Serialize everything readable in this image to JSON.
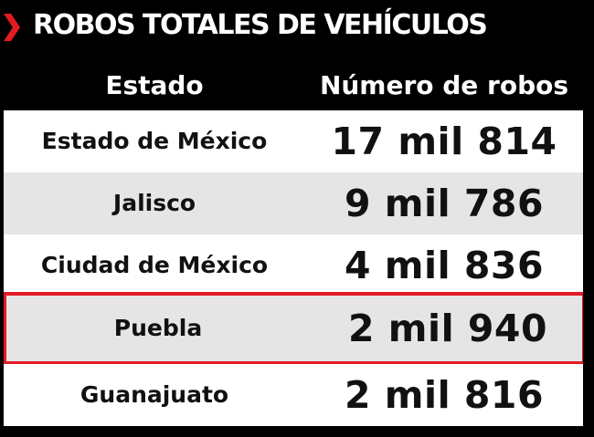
{
  "title": "ROBOS TOTALES DE VEHÍCULOS",
  "accent_color": "#e31b23",
  "header": {
    "state": "Estado",
    "count": "Número de robos"
  },
  "rows": [
    {
      "state": "Estado de México",
      "count": "17 mil 814"
    },
    {
      "state": "Jalisco",
      "count": "9 mil 786"
    },
    {
      "state": "Ciudad de México",
      "count": "4 mil 836"
    },
    {
      "state": "Puebla",
      "count": "2 mil 940",
      "highlighted": true
    },
    {
      "state": "Guanajuato",
      "count": "2 mil 816"
    }
  ]
}
